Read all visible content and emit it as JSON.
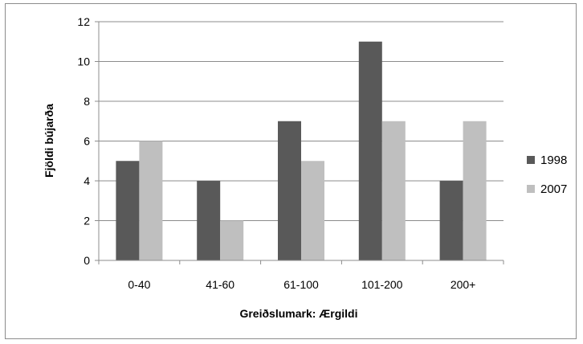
{
  "chart_data": {
    "type": "bar",
    "title": "",
    "xlabel": "Greiðslumark: Ærgildi",
    "ylabel": "Fjöldi bújarða",
    "categories": [
      "0-40",
      "41-60",
      "61-100",
      "101-200",
      "200+"
    ],
    "series": [
      {
        "name": "1998",
        "values": [
          5,
          4,
          7,
          11,
          4
        ],
        "color": "#595959"
      },
      {
        "name": "2007",
        "values": [
          6,
          2,
          5,
          7,
          7
        ],
        "color": "#bfbfbf"
      }
    ],
    "ylim": [
      0,
      12
    ],
    "yticks": [
      0,
      2,
      4,
      6,
      8,
      10,
      12
    ],
    "grid": true,
    "legend_position": "right"
  }
}
